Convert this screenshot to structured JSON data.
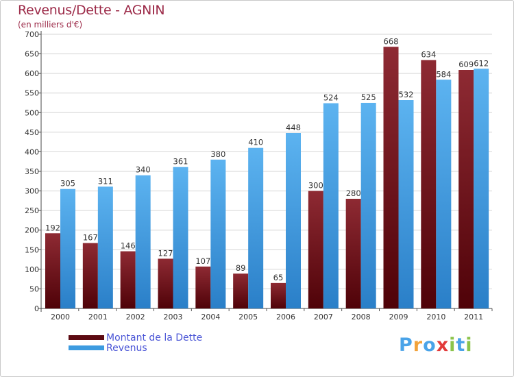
{
  "title": "Revenus/Dette - AGNIN",
  "subtitle": "(en milliers d'€)",
  "chart_data": {
    "type": "bar",
    "categories": [
      "2000",
      "2001",
      "2002",
      "2003",
      "2004",
      "2005",
      "2006",
      "2007",
      "2008",
      "2009",
      "2010",
      "2011"
    ],
    "series": [
      {
        "name": "Montant de la Dette",
        "values": [
          192,
          167,
          146,
          127,
          107,
          89,
          65,
          300,
          280,
          668,
          634,
          609
        ],
        "color": "#7a1c26"
      },
      {
        "name": "Revenus",
        "values": [
          305,
          311,
          340,
          361,
          380,
          410,
          448,
          524,
          525,
          532,
          584,
          612
        ],
        "color": "#4aa3e8"
      }
    ],
    "ylim": [
      0,
      700
    ],
    "yticks": [
      0,
      50,
      100,
      150,
      200,
      250,
      300,
      350,
      400,
      450,
      500,
      550,
      600,
      650,
      700
    ],
    "grid": true,
    "legend_position": "bottom-left"
  },
  "legend": [
    {
      "label": "Montant de la Dette",
      "color": "#5c0a12"
    },
    {
      "label": "Revenus",
      "color": "#3d9be0"
    }
  ],
  "logo": {
    "letters": [
      "P",
      "r",
      "o",
      "x",
      "i",
      "t",
      "i"
    ],
    "colors": [
      "#4aa3e8",
      "#f2a23a",
      "#4aa3e8",
      "#e23a3a",
      "#8bc34a",
      "#4aa3e8",
      "#8bc34a"
    ]
  }
}
